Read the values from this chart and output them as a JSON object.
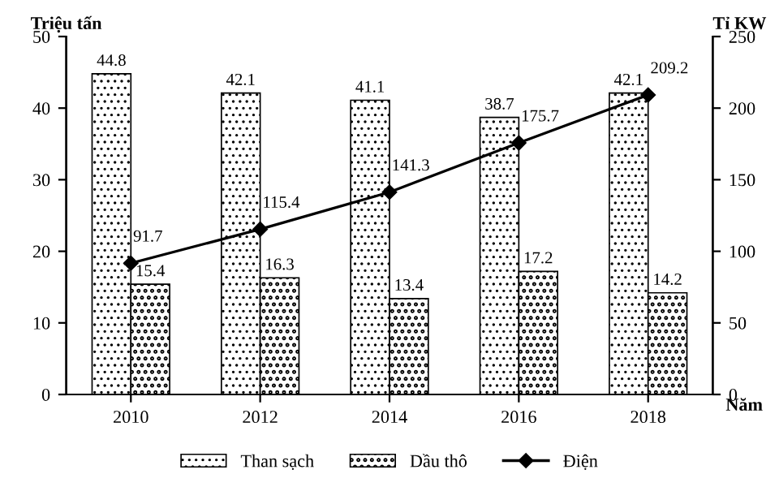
{
  "chart_data": {
    "type": "bar",
    "ylabel": "Triệu tấn",
    "y2label": "Tỉ KW",
    "xlabel": "Năm",
    "categories": [
      "2010",
      "2012",
      "2014",
      "2016",
      "2018"
    ],
    "series": [
      {
        "name": "Than sạch",
        "color": "#000000",
        "values": [
          44.8,
          42.1,
          41.1,
          38.7,
          42.1
        ]
      },
      {
        "name": "Dầu thô",
        "color": "#000000",
        "values": [
          15.4,
          16.3,
          13.4,
          17.2,
          14.2
        ]
      },
      {
        "name": "Điện",
        "type": "line",
        "axis": "y2",
        "color": "#000000",
        "marker": "diamond",
        "values": [
          91.7,
          115.4,
          141.3,
          175.7,
          209.2
        ]
      }
    ],
    "ylim": [
      0,
      50
    ],
    "yticks": [
      0,
      10,
      20,
      30,
      40,
      50
    ],
    "y2lim": [
      0,
      250
    ],
    "y2ticks": [
      0,
      50,
      100,
      150,
      200,
      250
    ],
    "data_labels": true,
    "legend": "bottom",
    "grid": false
  }
}
